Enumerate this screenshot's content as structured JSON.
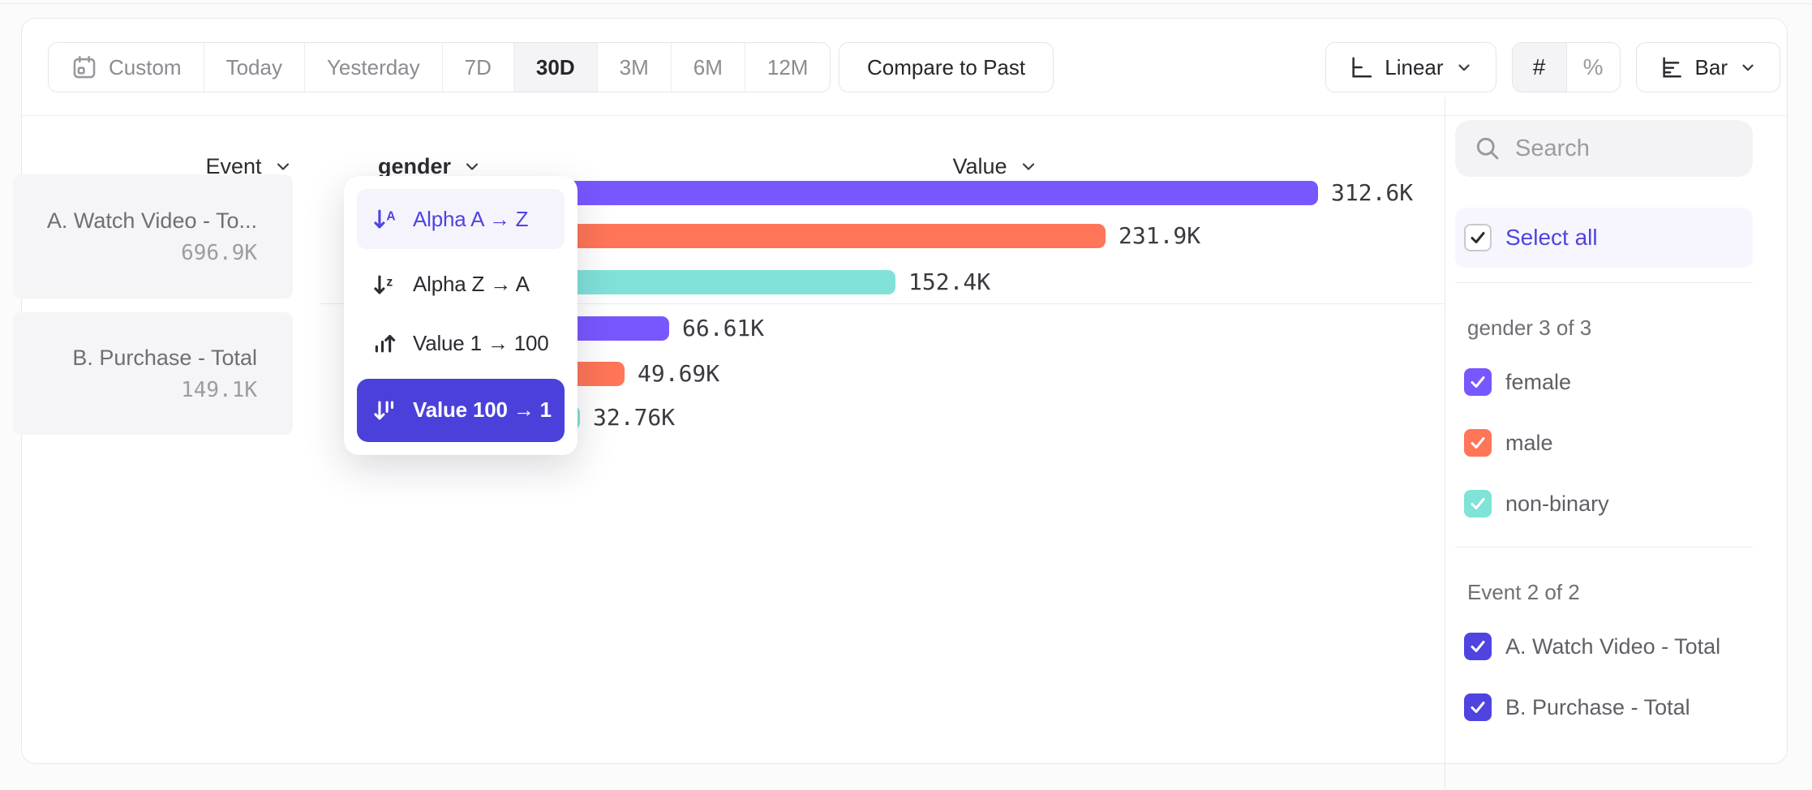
{
  "toolbar": {
    "date_ranges": [
      {
        "label": "Custom",
        "icon": "calendar",
        "selected": false
      },
      {
        "label": "Today",
        "selected": false
      },
      {
        "label": "Yesterday",
        "selected": false
      },
      {
        "label": "7D",
        "selected": false
      },
      {
        "label": "30D",
        "selected": true
      },
      {
        "label": "3M",
        "selected": false
      },
      {
        "label": "6M",
        "selected": false
      },
      {
        "label": "12M",
        "selected": false
      }
    ],
    "compare_label": "Compare to Past",
    "scale_label": "Linear",
    "number_format_options": [
      {
        "label": "#",
        "selected": true
      },
      {
        "label": "%",
        "selected": false
      }
    ],
    "chart_type_label": "Bar"
  },
  "columns": {
    "event": "Event",
    "breakdown": "gender",
    "value": "Value"
  },
  "events": [
    {
      "name": "A. Watch Video - To...",
      "value": "696.9K"
    },
    {
      "name": "B. Purchase - Total",
      "value": "149.1K"
    }
  ],
  "sort_menu": {
    "items": [
      {
        "label": "Alpha A → Z",
        "icon": "sort-alpha-asc-icon",
        "state": "hover"
      },
      {
        "label": "Alpha Z → A",
        "icon": "sort-alpha-desc-icon",
        "state": "normal"
      },
      {
        "label": "Value 1 → 100",
        "icon": "sort-value-asc-icon",
        "state": "normal"
      },
      {
        "label": "Value 100 → 1",
        "icon": "sort-value-desc-icon",
        "state": "selected"
      }
    ]
  },
  "chart_data": {
    "type": "bar",
    "orientation": "horizontal",
    "value_axis_label": "Value",
    "sort": "Value 100 → 1",
    "groups": [
      {
        "event": "A. Watch Video - Total",
        "bars": [
          {
            "category": "female",
            "value": 312600,
            "display": "312.6K",
            "color": "#7857FF"
          },
          {
            "category": "male",
            "value": 231900,
            "display": "231.9K",
            "color": "#FF7557"
          },
          {
            "category": "non-binary",
            "value": 152400,
            "display": "152.4K",
            "color": "#80E1D9"
          }
        ]
      },
      {
        "event": "B. Purchase - Total",
        "bars": [
          {
            "category": "female",
            "value": 66610,
            "display": "66.61K",
            "color": "#7857FF"
          },
          {
            "category": "male",
            "value": 49690,
            "display": "49.69K",
            "color": "#FF7557"
          },
          {
            "category": "non-binary",
            "value": 32760,
            "display": "32.76K",
            "color": "#80E1D9"
          }
        ]
      }
    ]
  },
  "sidebar": {
    "search_placeholder": "Search",
    "select_all_label": "Select all",
    "groups": [
      {
        "title": "gender 3 of 3",
        "items": [
          {
            "label": "female",
            "color": "#7857FF",
            "checked": true
          },
          {
            "label": "male",
            "color": "#FF7557",
            "checked": true
          },
          {
            "label": "non-binary",
            "color": "#7FE3D8",
            "checked": true
          }
        ]
      },
      {
        "title": "Event 2 of 2",
        "items": [
          {
            "label": "A. Watch Video - Total",
            "color": "#4F44E0",
            "checked": true
          },
          {
            "label": "B. Purchase - Total",
            "color": "#4F44E0",
            "checked": true
          }
        ]
      }
    ]
  },
  "colors": {
    "accent_indigo": "#4F44E0",
    "series_female": "#7857FF",
    "series_male": "#FF7557",
    "series_nonbinary": "#80E1D9"
  }
}
